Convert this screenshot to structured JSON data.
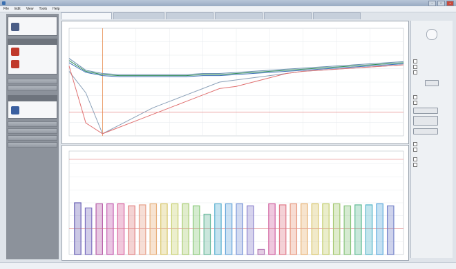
{
  "window": {
    "title": "",
    "controls": [
      "–",
      "□",
      "×"
    ]
  },
  "menu": [
    "File",
    "Edit",
    "View",
    "Tools",
    "Help"
  ],
  "tabs": [
    {
      "label": ""
    },
    {
      "label": ""
    },
    {
      "label": ""
    },
    {
      "label": ""
    },
    {
      "label": ""
    },
    {
      "label": ""
    }
  ],
  "sidebar": {
    "devices": [
      {
        "name": "",
        "icon": "device-icon",
        "color": "#4a5d86"
      },
      {
        "name": "",
        "icon": "device-icon",
        "color": "#c0392b"
      },
      {
        "name": "",
        "icon": "device-icon",
        "color": "#c0392b"
      },
      {
        "name": "",
        "icon": "device-icon",
        "color": "#3a5fa0"
      }
    ],
    "buttons": [
      "",
      "",
      "",
      "",
      "",
      ""
    ]
  },
  "chart_data": [
    {
      "type": "line",
      "title": "",
      "xlabel": "",
      "ylabel": "",
      "ylim": [
        0,
        100
      ],
      "grid": true,
      "series": [
        {
          "color": "#6a8faf",
          "values": [
            72,
            61,
            58,
            57,
            57,
            57,
            57,
            57,
            58,
            58,
            59,
            60,
            61,
            62,
            63,
            64,
            65,
            66,
            67,
            68,
            69
          ]
        },
        {
          "color": "#2e8b57",
          "values": [
            70,
            60,
            57,
            56,
            56,
            56,
            56,
            56,
            57,
            57,
            58,
            59,
            60,
            61,
            62,
            63,
            64,
            65,
            66,
            67,
            68
          ]
        },
        {
          "color": "#3b6fb6",
          "values": [
            68,
            59,
            56,
            55,
            55,
            55,
            55,
            55,
            56,
            56,
            57,
            58,
            59,
            60,
            61,
            62,
            63,
            64,
            65,
            66,
            67
          ]
        },
        {
          "color": "#8aa0b8",
          "values": [
            60,
            40,
            2,
            10,
            18,
            26,
            32,
            38,
            44,
            50,
            52,
            54,
            56,
            58,
            60,
            61,
            62,
            63,
            64,
            65,
            66
          ]
        },
        {
          "color": "#e07070",
          "values": [
            65,
            12,
            2,
            8,
            14,
            20,
            26,
            32,
            38,
            44,
            46,
            50,
            54,
            58,
            60,
            61,
            62,
            63,
            64,
            65,
            66
          ]
        }
      ],
      "markers": [
        {
          "x": 2,
          "color": "#e8894a"
        }
      ],
      "reference_lines": [
        {
          "y": 22,
          "color": "#e06a6a"
        }
      ]
    },
    {
      "type": "bar",
      "title": "",
      "xlabel": "",
      "ylabel": "",
      "ylim": [
        0,
        100
      ],
      "grid": true,
      "reference_lines": [
        {
          "y": 25,
          "color": "#e06a6a"
        },
        {
          "y": 92,
          "color": "#e06a6a"
        }
      ],
      "bars": [
        {
          "value": 50,
          "color": "#6a62b5"
        },
        {
          "value": 45,
          "color": "#7b6fc0"
        },
        {
          "value": 49,
          "color": "#b85fa8"
        },
        {
          "value": 49,
          "color": "#c45cb0"
        },
        {
          "value": 49,
          "color": "#d8609c"
        },
        {
          "value": 47,
          "color": "#e08080"
        },
        {
          "value": 48,
          "color": "#e6a08a"
        },
        {
          "value": 49,
          "color": "#e8b07c"
        },
        {
          "value": 49,
          "color": "#d8c66a"
        },
        {
          "value": 49,
          "color": "#c8d070"
        },
        {
          "value": 49,
          "color": "#a8cc70"
        },
        {
          "value": 47,
          "color": "#88c878"
        },
        {
          "value": 39,
          "color": "#66b89a"
        },
        {
          "value": 49,
          "color": "#5ab0d0"
        },
        {
          "value": 49,
          "color": "#6aa8dc"
        },
        {
          "value": 49,
          "color": "#7a96d8"
        },
        {
          "value": 47,
          "color": "#8a80cc"
        },
        {
          "value": 5,
          "color": "#b070b0"
        },
        {
          "value": 49,
          "color": "#d060a0"
        },
        {
          "value": 48,
          "color": "#e07a8a"
        },
        {
          "value": 49,
          "color": "#e89a80"
        },
        {
          "value": 49,
          "color": "#e8b274"
        },
        {
          "value": 49,
          "color": "#d8c466"
        },
        {
          "value": 49,
          "color": "#c2cc6a"
        },
        {
          "value": 49,
          "color": "#a4c870"
        },
        {
          "value": 47,
          "color": "#86c47a"
        },
        {
          "value": 48,
          "color": "#62bc96"
        },
        {
          "value": 48,
          "color": "#50b4c8"
        },
        {
          "value": 49,
          "color": "#5aa8dc"
        },
        {
          "value": 47,
          "color": "#7280c8"
        }
      ]
    }
  ],
  "right_panel": {
    "buttons": [
      "",
      "",
      "",
      ""
    ],
    "checkboxes": [
      "",
      "",
      "",
      "",
      "",
      "",
      "",
      "",
      "",
      ""
    ]
  },
  "status": ""
}
